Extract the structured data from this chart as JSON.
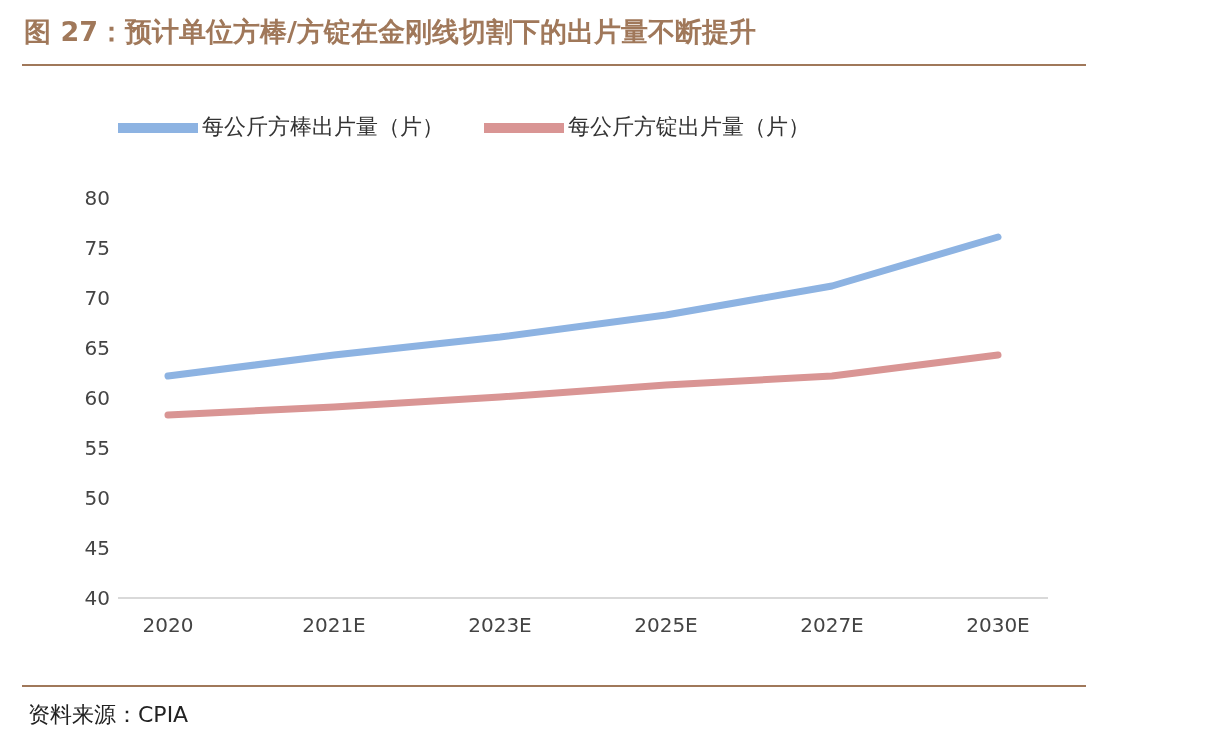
{
  "chart_data": {
    "type": "line",
    "title": "图 27：预计单位方棒/方锭在金刚线切割下的出片量不断提升",
    "categories": [
      "2020",
      "2021E",
      "2023E",
      "2025E",
      "2027E",
      "2030E"
    ],
    "series": [
      {
        "name": "每公斤方棒出片量（片）",
        "color": "#8db3e2",
        "values": [
          62.2,
          64.3,
          66.1,
          68.3,
          71.2,
          76.1
        ]
      },
      {
        "name": "每公斤方锭出片量（片）",
        "color": "#d99594",
        "values": [
          58.3,
          59.1,
          60.1,
          61.3,
          62.2,
          64.3
        ]
      }
    ],
    "ylim": [
      40,
      80
    ],
    "yticks": [
      40,
      45,
      50,
      55,
      60,
      65,
      70,
      75,
      80
    ],
    "grid": false,
    "legend": "top",
    "marker": "none",
    "line_style": "solid",
    "annotations": [
      "资料来源：CPIA"
    ]
  }
}
